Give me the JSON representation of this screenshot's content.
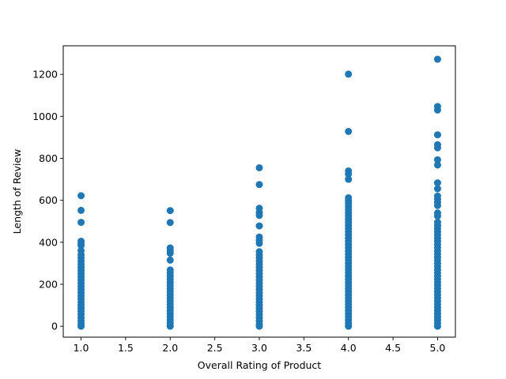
{
  "chart_data": {
    "type": "scatter",
    "title": "",
    "xlabel": "Overall Rating of Product",
    "ylabel": "Length of Review",
    "xlim": [
      0.8,
      5.2
    ],
    "ylim": [
      -52,
      1336
    ],
    "xticks": [
      1.0,
      1.5,
      2.0,
      2.5,
      3.0,
      3.5,
      4.0,
      4.5,
      5.0
    ],
    "xtick_labels": [
      "1.0",
      "1.5",
      "2.0",
      "2.5",
      "3.0",
      "3.5",
      "4.0",
      "4.5",
      "5.0"
    ],
    "yticks": [
      0,
      200,
      400,
      600,
      800,
      1000,
      1200
    ],
    "ytick_labels": [
      "0",
      "200",
      "400",
      "600",
      "800",
      "1000",
      "1200"
    ],
    "grid": false,
    "marker_color": "#1f77b4",
    "series": [
      {
        "points": [
          {
            "x": 1,
            "y": 622
          },
          {
            "x": 1,
            "y": 552
          },
          {
            "x": 1,
            "y": 495
          },
          {
            "x": 1,
            "y": 405
          },
          {
            "x": 1,
            "y": 395
          },
          {
            "x": 1,
            "y": 385
          },
          {
            "x": 1,
            "y": 360
          },
          {
            "x": 1,
            "y": 340
          },
          {
            "x": 1,
            "y": 325
          },
          {
            "x": 1,
            "y": 310
          },
          {
            "x": 1,
            "y": 295
          },
          {
            "x": 1,
            "y": 280
          },
          {
            "x": 1,
            "y": 265
          },
          {
            "x": 1,
            "y": 250
          },
          {
            "x": 1,
            "y": 235
          },
          {
            "x": 1,
            "y": 220
          },
          {
            "x": 1,
            "y": 205
          },
          {
            "x": 1,
            "y": 190
          },
          {
            "x": 1,
            "y": 175
          },
          {
            "x": 1,
            "y": 160
          },
          {
            "x": 1,
            "y": 145
          },
          {
            "x": 1,
            "y": 130
          },
          {
            "x": 1,
            "y": 115
          },
          {
            "x": 1,
            "y": 100
          },
          {
            "x": 1,
            "y": 85
          },
          {
            "x": 1,
            "y": 70
          },
          {
            "x": 1,
            "y": 55
          },
          {
            "x": 1,
            "y": 40
          },
          {
            "x": 1,
            "y": 25
          },
          {
            "x": 1,
            "y": 10
          },
          {
            "x": 1,
            "y": 0
          },
          {
            "x": 2,
            "y": 551
          },
          {
            "x": 2,
            "y": 494
          },
          {
            "x": 2,
            "y": 373
          },
          {
            "x": 2,
            "y": 360
          },
          {
            "x": 2,
            "y": 348
          },
          {
            "x": 2,
            "y": 315
          },
          {
            "x": 2,
            "y": 268
          },
          {
            "x": 2,
            "y": 255
          },
          {
            "x": 2,
            "y": 240
          },
          {
            "x": 2,
            "y": 225
          },
          {
            "x": 2,
            "y": 210
          },
          {
            "x": 2,
            "y": 195
          },
          {
            "x": 2,
            "y": 180
          },
          {
            "x": 2,
            "y": 165
          },
          {
            "x": 2,
            "y": 150
          },
          {
            "x": 2,
            "y": 135
          },
          {
            "x": 2,
            "y": 120
          },
          {
            "x": 2,
            "y": 105
          },
          {
            "x": 2,
            "y": 90
          },
          {
            "x": 2,
            "y": 75
          },
          {
            "x": 2,
            "y": 60
          },
          {
            "x": 2,
            "y": 45
          },
          {
            "x": 2,
            "y": 30
          },
          {
            "x": 2,
            "y": 15
          },
          {
            "x": 2,
            "y": 0
          },
          {
            "x": 3,
            "y": 755
          },
          {
            "x": 3,
            "y": 675
          },
          {
            "x": 3,
            "y": 562
          },
          {
            "x": 3,
            "y": 542
          },
          {
            "x": 3,
            "y": 528
          },
          {
            "x": 3,
            "y": 478
          },
          {
            "x": 3,
            "y": 425
          },
          {
            "x": 3,
            "y": 410
          },
          {
            "x": 3,
            "y": 395
          },
          {
            "x": 3,
            "y": 355
          },
          {
            "x": 3,
            "y": 340
          },
          {
            "x": 3,
            "y": 325
          },
          {
            "x": 3,
            "y": 310
          },
          {
            "x": 3,
            "y": 295
          },
          {
            "x": 3,
            "y": 280
          },
          {
            "x": 3,
            "y": 265
          },
          {
            "x": 3,
            "y": 250
          },
          {
            "x": 3,
            "y": 235
          },
          {
            "x": 3,
            "y": 220
          },
          {
            "x": 3,
            "y": 205
          },
          {
            "x": 3,
            "y": 190
          },
          {
            "x": 3,
            "y": 175
          },
          {
            "x": 3,
            "y": 160
          },
          {
            "x": 3,
            "y": 145
          },
          {
            "x": 3,
            "y": 130
          },
          {
            "x": 3,
            "y": 115
          },
          {
            "x": 3,
            "y": 100
          },
          {
            "x": 3,
            "y": 85
          },
          {
            "x": 3,
            "y": 70
          },
          {
            "x": 3,
            "y": 55
          },
          {
            "x": 3,
            "y": 40
          },
          {
            "x": 3,
            "y": 25
          },
          {
            "x": 3,
            "y": 10
          },
          {
            "x": 3,
            "y": 0
          },
          {
            "x": 4,
            "y": 1201
          },
          {
            "x": 4,
            "y": 928
          },
          {
            "x": 4,
            "y": 740
          },
          {
            "x": 4,
            "y": 725
          },
          {
            "x": 4,
            "y": 700
          },
          {
            "x": 4,
            "y": 612
          },
          {
            "x": 4,
            "y": 598
          },
          {
            "x": 4,
            "y": 585
          },
          {
            "x": 4,
            "y": 570
          },
          {
            "x": 4,
            "y": 555
          },
          {
            "x": 4,
            "y": 540
          },
          {
            "x": 4,
            "y": 525
          },
          {
            "x": 4,
            "y": 510
          },
          {
            "x": 4,
            "y": 495
          },
          {
            "x": 4,
            "y": 480
          },
          {
            "x": 4,
            "y": 465
          },
          {
            "x": 4,
            "y": 450
          },
          {
            "x": 4,
            "y": 435
          },
          {
            "x": 4,
            "y": 420
          },
          {
            "x": 4,
            "y": 405
          },
          {
            "x": 4,
            "y": 390
          },
          {
            "x": 4,
            "y": 375
          },
          {
            "x": 4,
            "y": 360
          },
          {
            "x": 4,
            "y": 345
          },
          {
            "x": 4,
            "y": 330
          },
          {
            "x": 4,
            "y": 315
          },
          {
            "x": 4,
            "y": 300
          },
          {
            "x": 4,
            "y": 285
          },
          {
            "x": 4,
            "y": 270
          },
          {
            "x": 4,
            "y": 255
          },
          {
            "x": 4,
            "y": 240
          },
          {
            "x": 4,
            "y": 225
          },
          {
            "x": 4,
            "y": 210
          },
          {
            "x": 4,
            "y": 195
          },
          {
            "x": 4,
            "y": 180
          },
          {
            "x": 4,
            "y": 165
          },
          {
            "x": 4,
            "y": 150
          },
          {
            "x": 4,
            "y": 135
          },
          {
            "x": 4,
            "y": 120
          },
          {
            "x": 4,
            "y": 105
          },
          {
            "x": 4,
            "y": 90
          },
          {
            "x": 4,
            "y": 75
          },
          {
            "x": 4,
            "y": 60
          },
          {
            "x": 4,
            "y": 45
          },
          {
            "x": 4,
            "y": 30
          },
          {
            "x": 4,
            "y": 15
          },
          {
            "x": 4,
            "y": 0
          },
          {
            "x": 5,
            "y": 1272
          },
          {
            "x": 5,
            "y": 1047
          },
          {
            "x": 5,
            "y": 1030
          },
          {
            "x": 5,
            "y": 912
          },
          {
            "x": 5,
            "y": 865
          },
          {
            "x": 5,
            "y": 850
          },
          {
            "x": 5,
            "y": 793
          },
          {
            "x": 5,
            "y": 768
          },
          {
            "x": 5,
            "y": 683
          },
          {
            "x": 5,
            "y": 655
          },
          {
            "x": 5,
            "y": 620
          },
          {
            "x": 5,
            "y": 605
          },
          {
            "x": 5,
            "y": 590
          },
          {
            "x": 5,
            "y": 575
          },
          {
            "x": 5,
            "y": 540
          },
          {
            "x": 5,
            "y": 525
          },
          {
            "x": 5,
            "y": 495
          },
          {
            "x": 5,
            "y": 480
          },
          {
            "x": 5,
            "y": 465
          },
          {
            "x": 5,
            "y": 450
          },
          {
            "x": 5,
            "y": 435
          },
          {
            "x": 5,
            "y": 420
          },
          {
            "x": 5,
            "y": 405
          },
          {
            "x": 5,
            "y": 390
          },
          {
            "x": 5,
            "y": 375
          },
          {
            "x": 5,
            "y": 360
          },
          {
            "x": 5,
            "y": 345
          },
          {
            "x": 5,
            "y": 330
          },
          {
            "x": 5,
            "y": 315
          },
          {
            "x": 5,
            "y": 300
          },
          {
            "x": 5,
            "y": 285
          },
          {
            "x": 5,
            "y": 270
          },
          {
            "x": 5,
            "y": 255
          },
          {
            "x": 5,
            "y": 240
          },
          {
            "x": 5,
            "y": 225
          },
          {
            "x": 5,
            "y": 210
          },
          {
            "x": 5,
            "y": 195
          },
          {
            "x": 5,
            "y": 180
          },
          {
            "x": 5,
            "y": 165
          },
          {
            "x": 5,
            "y": 150
          },
          {
            "x": 5,
            "y": 135
          },
          {
            "x": 5,
            "y": 120
          },
          {
            "x": 5,
            "y": 105
          },
          {
            "x": 5,
            "y": 90
          },
          {
            "x": 5,
            "y": 75
          },
          {
            "x": 5,
            "y": 60
          },
          {
            "x": 5,
            "y": 45
          },
          {
            "x": 5,
            "y": 30
          },
          {
            "x": 5,
            "y": 15
          },
          {
            "x": 5,
            "y": 0
          }
        ]
      }
    ]
  }
}
